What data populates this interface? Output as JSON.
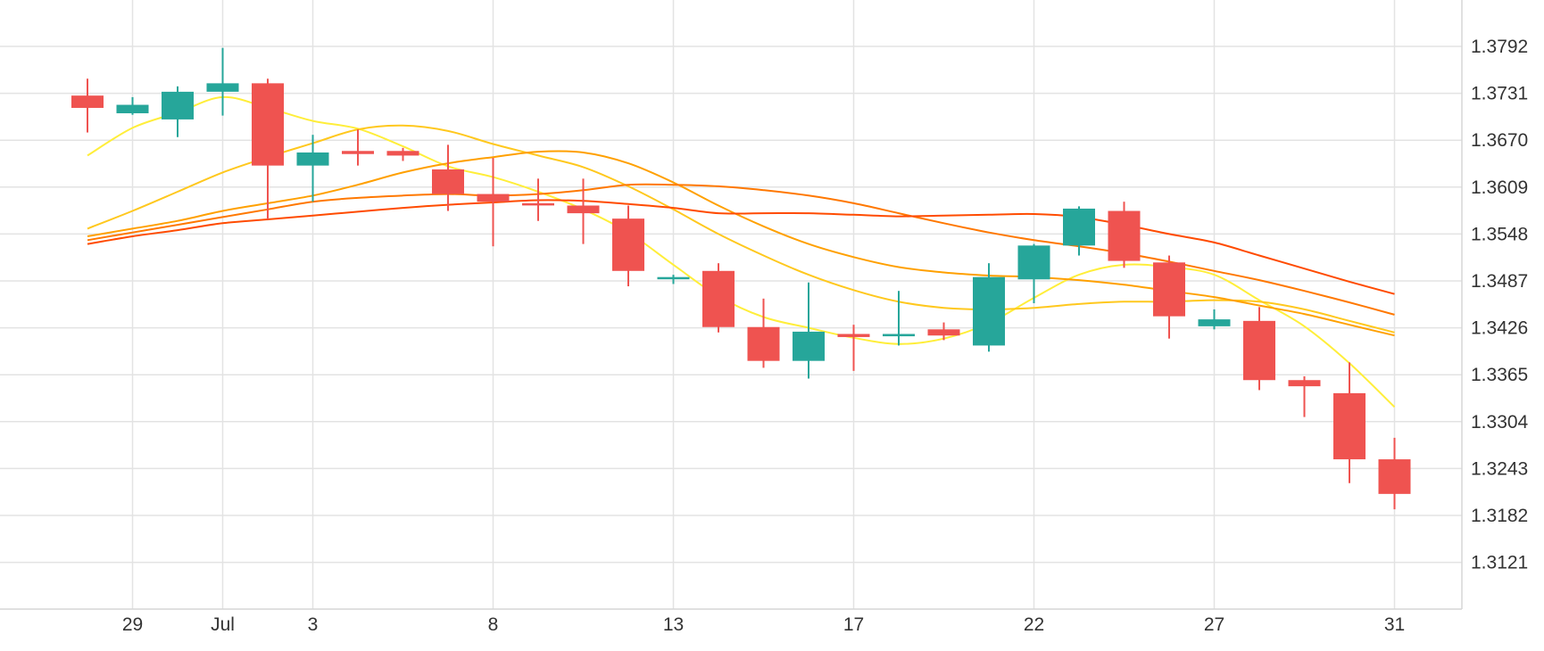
{
  "chart_data": {
    "type": "candlestick",
    "colors": {
      "up": "#26a69a",
      "down": "#ef5350",
      "grid": "#e3e3e3"
    },
    "y_ticks": [
      "1.3792",
      "1.3731",
      "1.3670",
      "1.3609",
      "1.3548",
      "1.3487",
      "1.3426",
      "1.3365",
      "1.3304",
      "1.3243",
      "1.3182",
      "1.3121"
    ],
    "ylim": [
      1.306,
      1.3853
    ],
    "x_ticks": [
      {
        "label": "29",
        "i": 1
      },
      {
        "label": "Jul",
        "i": 3
      },
      {
        "label": "3",
        "i": 5
      },
      {
        "label": "8",
        "i": 9
      },
      {
        "label": "13",
        "i": 13
      },
      {
        "label": "17",
        "i": 17
      },
      {
        "label": "22",
        "i": 21
      },
      {
        "label": "27",
        "i": 25
      },
      {
        "label": "31",
        "i": 29
      }
    ],
    "candles": [
      {
        "o": 1.3728,
        "h": 1.375,
        "l": 1.368,
        "c": 1.3712
      },
      {
        "o": 1.3705,
        "h": 1.3726,
        "l": 1.3703,
        "c": 1.3716
      },
      {
        "o": 1.3697,
        "h": 1.374,
        "l": 1.3674,
        "c": 1.3733
      },
      {
        "o": 1.3733,
        "h": 1.379,
        "l": 1.3702,
        "c": 1.3744
      },
      {
        "o": 1.3744,
        "h": 1.375,
        "l": 1.3567,
        "c": 1.3637
      },
      {
        "o": 1.3637,
        "h": 1.3677,
        "l": 1.359,
        "c": 1.3654
      },
      {
        "o": 1.3656,
        "h": 1.3684,
        "l": 1.3637,
        "c": 1.3652
      },
      {
        "o": 1.3656,
        "h": 1.366,
        "l": 1.3643,
        "c": 1.365
      },
      {
        "o": 1.3632,
        "h": 1.3664,
        "l": 1.3578,
        "c": 1.36
      },
      {
        "o": 1.36,
        "h": 1.3647,
        "l": 1.3532,
        "c": 1.359
      },
      {
        "o": 1.3588,
        "h": 1.362,
        "l": 1.3565,
        "c": 1.3587
      },
      {
        "o": 1.3585,
        "h": 1.362,
        "l": 1.3535,
        "c": 1.3575
      },
      {
        "o": 1.3568,
        "h": 1.3585,
        "l": 1.348,
        "c": 1.35
      },
      {
        "o": 1.349,
        "h": 1.3495,
        "l": 1.3483,
        "c": 1.3492
      },
      {
        "o": 1.35,
        "h": 1.351,
        "l": 1.342,
        "c": 1.3427
      },
      {
        "o": 1.3427,
        "h": 1.3464,
        "l": 1.3374,
        "c": 1.3383
      },
      {
        "o": 1.3383,
        "h": 1.3485,
        "l": 1.336,
        "c": 1.3421
      },
      {
        "o": 1.3418,
        "h": 1.343,
        "l": 1.337,
        "c": 1.3414
      },
      {
        "o": 1.3415,
        "h": 1.3474,
        "l": 1.3403,
        "c": 1.3418
      },
      {
        "o": 1.3424,
        "h": 1.3433,
        "l": 1.341,
        "c": 1.3416
      },
      {
        "o": 1.3403,
        "h": 1.351,
        "l": 1.3395,
        "c": 1.3492
      },
      {
        "o": 1.3489,
        "h": 1.3535,
        "l": 1.3458,
        "c": 1.3533
      },
      {
        "o": 1.3533,
        "h": 1.3584,
        "l": 1.352,
        "c": 1.3581
      },
      {
        "o": 1.3578,
        "h": 1.359,
        "l": 1.3504,
        "c": 1.3513
      },
      {
        "o": 1.3511,
        "h": 1.352,
        "l": 1.3412,
        "c": 1.3441
      },
      {
        "o": 1.3428,
        "h": 1.345,
        "l": 1.3424,
        "c": 1.3437
      },
      {
        "o": 1.3435,
        "h": 1.3453,
        "l": 1.3345,
        "c": 1.3358
      },
      {
        "o": 1.3358,
        "h": 1.3363,
        "l": 1.331,
        "c": 1.335
      },
      {
        "o": 1.3341,
        "h": 1.3381,
        "l": 1.3224,
        "c": 1.3255
      },
      {
        "o": 1.3255,
        "h": 1.3283,
        "l": 1.319,
        "c": 1.321
      }
    ],
    "moving_averages": [
      {
        "color": "#ffee3a",
        "values": [
          1.365,
          1.3686,
          1.3706,
          1.3726,
          1.3712,
          1.3695,
          1.3685,
          1.3662,
          1.3636,
          1.3622,
          1.3603,
          1.358,
          1.355,
          1.3508,
          1.3467,
          1.344,
          1.3426,
          1.3413,
          1.3405,
          1.3412,
          1.3432,
          1.3465,
          1.3495,
          1.3508,
          1.3505,
          1.3495,
          1.3462,
          1.3428,
          1.338,
          1.3323
        ]
      },
      {
        "color": "#ffc81e",
        "values": [
          1.3555,
          1.3578,
          1.3603,
          1.3628,
          1.3648,
          1.3666,
          1.3684,
          1.3689,
          1.3682,
          1.3665,
          1.365,
          1.3635,
          1.361,
          1.358,
          1.3548,
          1.352,
          1.3495,
          1.3475,
          1.346,
          1.3452,
          1.345,
          1.3452,
          1.3457,
          1.346,
          1.346,
          1.3462,
          1.346,
          1.345,
          1.3435,
          1.342
        ]
      },
      {
        "color": "#ffa000",
        "values": [
          1.3545,
          1.3555,
          1.3565,
          1.3578,
          1.3588,
          1.3598,
          1.3612,
          1.3628,
          1.364,
          1.3648,
          1.3655,
          1.3654,
          1.364,
          1.3615,
          1.3585,
          1.3558,
          1.3535,
          1.3518,
          1.3505,
          1.3498,
          1.3494,
          1.3492,
          1.3488,
          1.3482,
          1.3474,
          1.3466,
          1.3455,
          1.3444,
          1.343,
          1.3416
        ]
      },
      {
        "color": "#ff7800",
        "values": [
          1.354,
          1.355,
          1.356,
          1.357,
          1.358,
          1.359,
          1.3595,
          1.3598,
          1.36,
          1.3598,
          1.36,
          1.3605,
          1.3612,
          1.3612,
          1.361,
          1.3605,
          1.3598,
          1.3588,
          1.3575,
          1.3562,
          1.355,
          1.354,
          1.3532,
          1.3523,
          1.3512,
          1.35,
          1.3488,
          1.3474,
          1.3459,
          1.3443
        ]
      },
      {
        "color": "#ff4b00",
        "values": [
          1.3535,
          1.3545,
          1.3553,
          1.3562,
          1.3567,
          1.3572,
          1.3577,
          1.3582,
          1.3586,
          1.3589,
          1.3592,
          1.3591,
          1.3587,
          1.3582,
          1.3575,
          1.3575,
          1.3575,
          1.3573,
          1.3571,
          1.3572,
          1.3573,
          1.3574,
          1.357,
          1.356,
          1.3548,
          1.3537,
          1.352,
          1.3503,
          1.3486,
          1.347
        ]
      }
    ]
  }
}
